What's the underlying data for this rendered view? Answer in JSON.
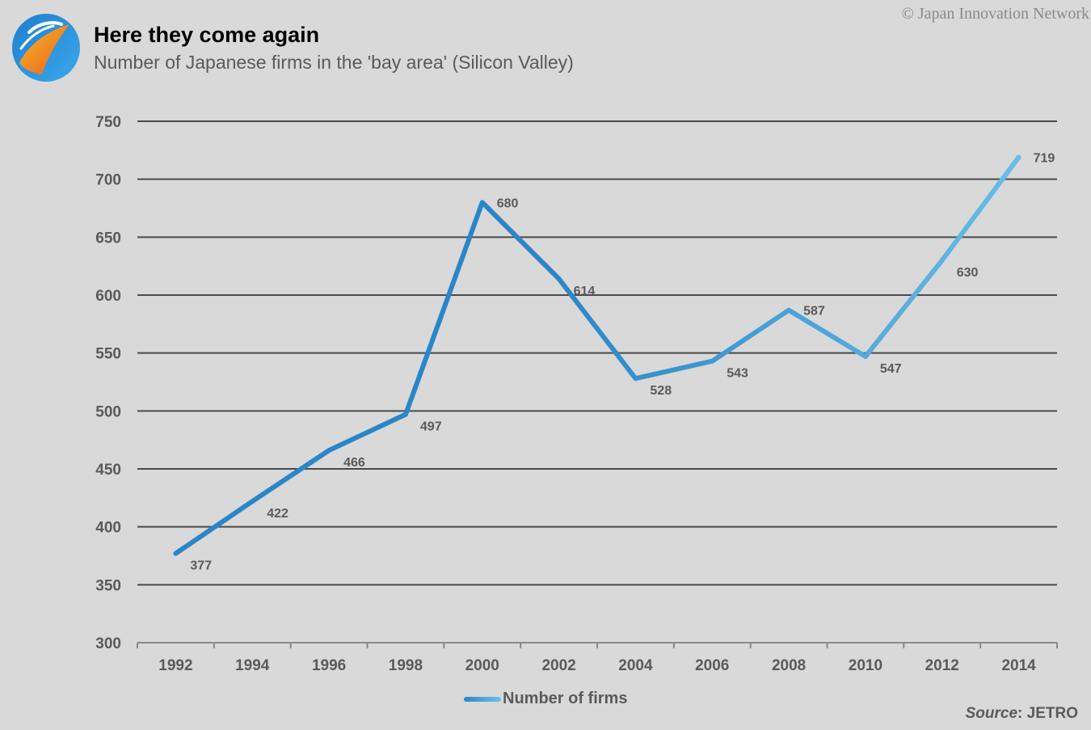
{
  "header": {
    "title": "Here they come again",
    "subtitle": "Number of Japanese firms in the 'bay area' (Silicon Valley)",
    "copyright": "© Japan Innovation Network",
    "logo_icon": "globe-logo-icon"
  },
  "footer": {
    "source_key": "Source",
    "source_value": ": JETRO"
  },
  "colors": {
    "line_start": "#2a86c6",
    "line_end": "#6cc2ea",
    "background": "#d9d9d9",
    "gridline": "#4a4a4a"
  },
  "chart_data": {
    "type": "line",
    "title": "Here they come again",
    "subtitle": "Number of Japanese firms in the 'bay area' (Silicon Valley)",
    "x": [
      1992,
      1994,
      1996,
      1998,
      2000,
      2002,
      2004,
      2006,
      2008,
      2010,
      2012,
      2014
    ],
    "series": [
      {
        "name": "Number of firms",
        "values": [
          377,
          422,
          466,
          497,
          680,
          614,
          528,
          543,
          587,
          547,
          630,
          719
        ]
      }
    ],
    "x_tick_labels": [
      "1992",
      "1994",
      "1996",
      "1998",
      "2000",
      "2002",
      "2004",
      "2006",
      "2008",
      "2010",
      "2012",
      "2014"
    ],
    "y_tick_labels": [
      "300",
      "350",
      "400",
      "450",
      "500",
      "550",
      "600",
      "650",
      "700",
      "750"
    ],
    "ylim": [
      300,
      750
    ],
    "y_ticks": [
      300,
      350,
      400,
      450,
      500,
      550,
      600,
      650,
      700,
      750
    ],
    "xlabel": "",
    "ylabel": "",
    "grid": true,
    "legend": "bottom-center",
    "data_labels": true
  }
}
